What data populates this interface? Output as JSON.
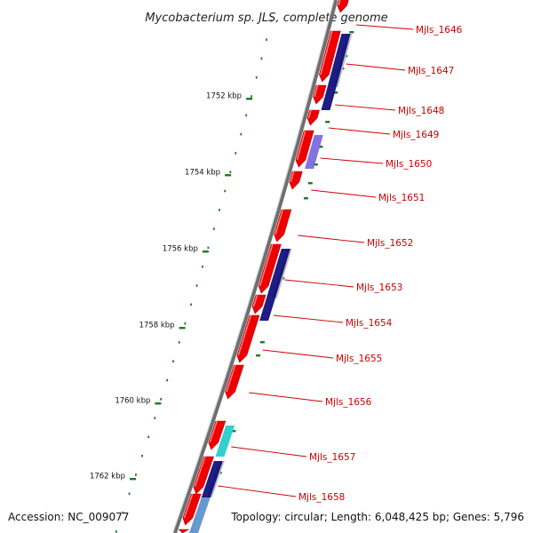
{
  "title": "Mycobacterium sp. JLS, complete genome",
  "footer": {
    "accession": "Accession: NC_009077",
    "topology": "Topology: circular; Length: 6,048,425 bp; Genes: 5,796"
  },
  "colors": {
    "backbone": "#7a7a7a",
    "tick": "#1f7a1f",
    "cds": "#ee0000",
    "label": "#cc0000",
    "blast_dark": "#0a0a7a",
    "blast_medium": "#7a66dd",
    "blast_light": "#bdbdbd",
    "blast_cyan": "#22cccc",
    "blast_steel": "#5a8fcc"
  },
  "ticks": [
    {
      "label": "1752 kbp"
    },
    {
      "label": "1754 kbp"
    },
    {
      "label": "1756 kbp"
    },
    {
      "label": "1758 kbp"
    },
    {
      "label": "1760 kbp"
    },
    {
      "label": "1762 kbp"
    }
  ],
  "genes": [
    {
      "label": "Mjls_1646"
    },
    {
      "label": "Mjls_1647"
    },
    {
      "label": "Mjls_1648"
    },
    {
      "label": "Mjls_1649"
    },
    {
      "label": "Mjls_1650"
    },
    {
      "label": "Mjls_1651"
    },
    {
      "label": "Mjls_1652"
    },
    {
      "label": "Mjls_1653"
    },
    {
      "label": "Mjls_1654"
    },
    {
      "label": "Mjls_1655"
    },
    {
      "label": "Mjls_1656"
    },
    {
      "label": "Mjls_1657"
    },
    {
      "label": "Mjls_1658"
    }
  ]
}
